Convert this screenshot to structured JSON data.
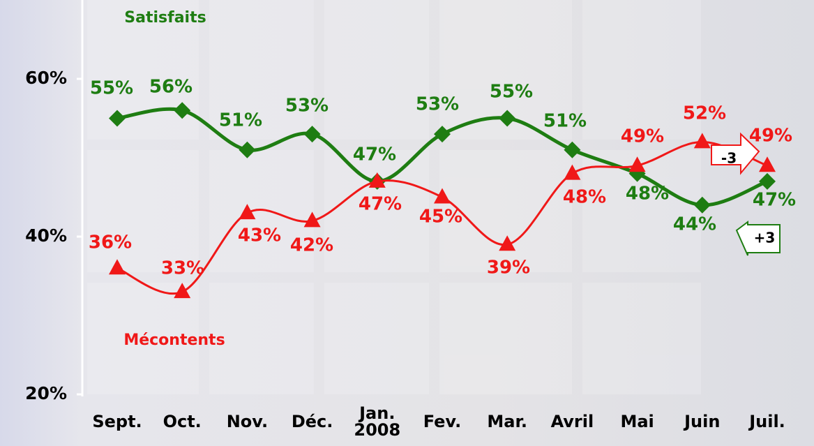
{
  "chart_data": {
    "type": "line",
    "categories": [
      "Sept.",
      "Oct.",
      "Nov.",
      "Déc.",
      "Jan.\n2008",
      "Fev.",
      "Mar.",
      "Avril",
      "Mai",
      "Juin",
      "Juil."
    ],
    "series": [
      {
        "name": "Satisfaits",
        "color": "#1e7d12",
        "marker": "diamond",
        "values": [
          55,
          56,
          51,
          53,
          47,
          53,
          55,
          51,
          48,
          44,
          47
        ],
        "value_labels": [
          "55%",
          "56%",
          "51%",
          "53%",
          "47%",
          "53%",
          "55%",
          "51%",
          "48%",
          "44%",
          "47%"
        ]
      },
      {
        "name": "Mécontents",
        "color": "#f01818",
        "marker": "triangle",
        "values": [
          36,
          33,
          43,
          42,
          47,
          45,
          39,
          48,
          49,
          52,
          49
        ],
        "value_labels": [
          "36%",
          "33%",
          "43%",
          "42%",
          "47%",
          "45%",
          "39%",
          "48%",
          "49%",
          "52%",
          "49%"
        ]
      }
    ],
    "ylim": [
      20,
      70
    ],
    "yticks": [
      {
        "value": 20,
        "label": "20%"
      },
      {
        "value": 40,
        "label": "40%"
      },
      {
        "value": 60,
        "label": "60%"
      }
    ],
    "annotations": [
      {
        "text": "-3",
        "color": "#f01818"
      },
      {
        "text": "+3",
        "color": "#1e7d12"
      }
    ]
  }
}
